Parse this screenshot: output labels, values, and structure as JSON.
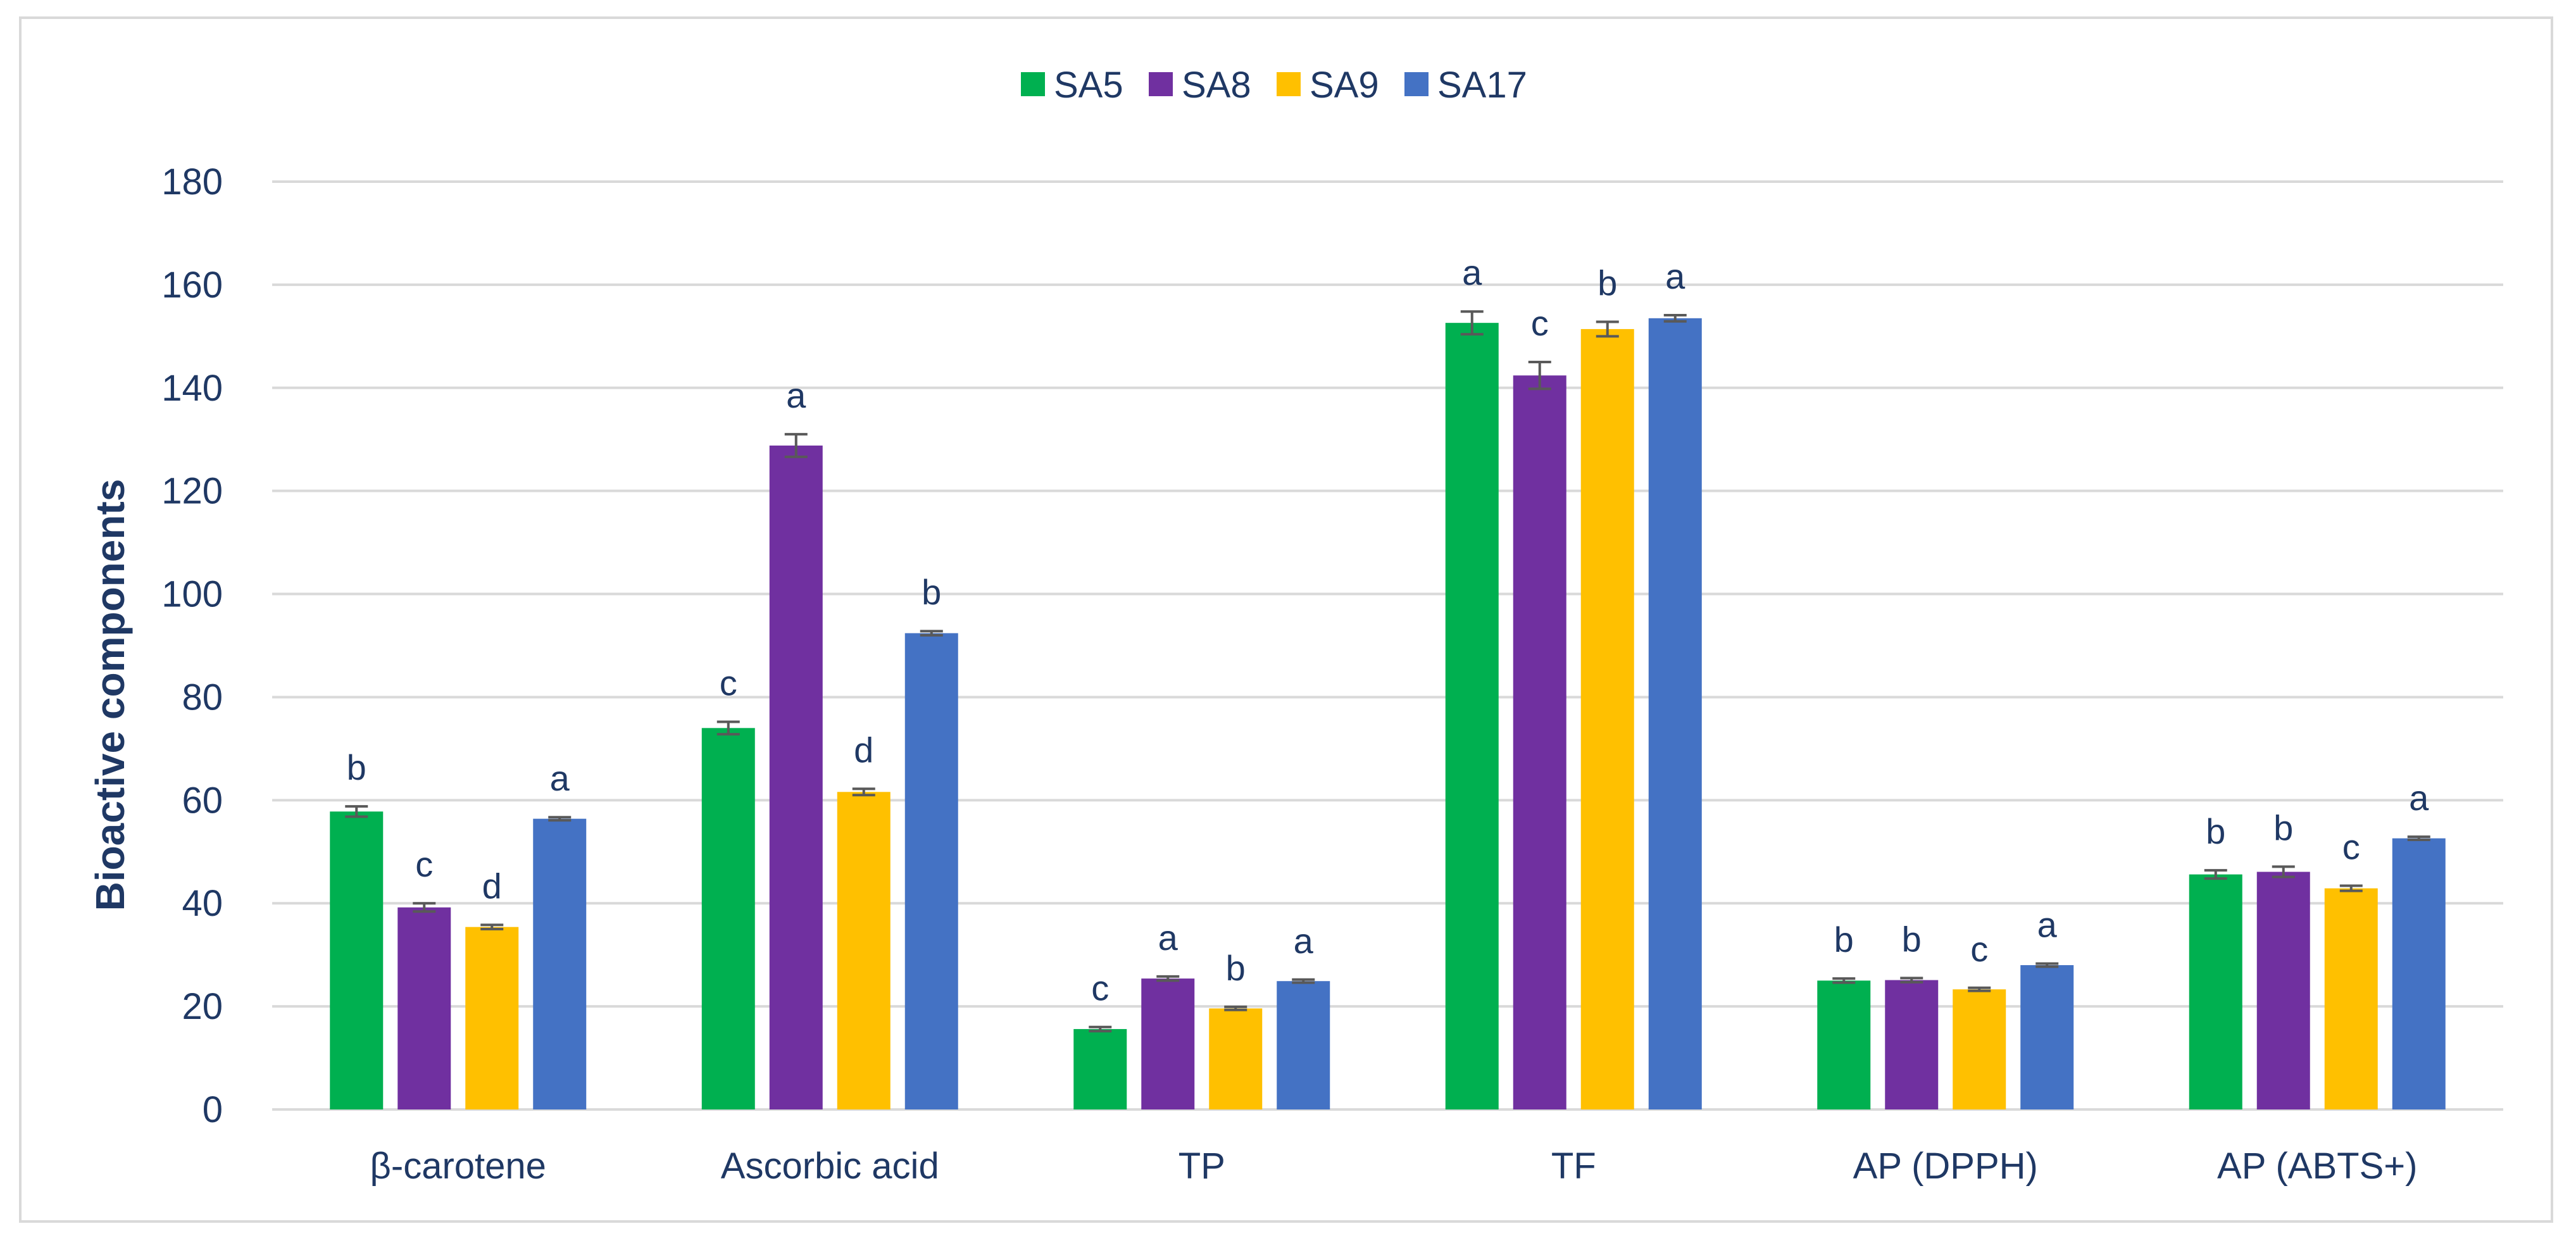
{
  "chart_data": {
    "type": "bar",
    "title": "",
    "xlabel": "",
    "ylabel": "Bioactive components",
    "ylim": [
      0,
      180
    ],
    "yticks": [
      0,
      20,
      40,
      60,
      80,
      100,
      120,
      140,
      160,
      180
    ],
    "grid": true,
    "legend_position": "top-center",
    "categories": [
      "β-carotene",
      "Ascorbic acid",
      "TP",
      "TF",
      "AP (DPPH)",
      "AP (ABTS+)"
    ],
    "series": [
      {
        "name": "SA5",
        "color": "#00b050",
        "values": [
          57.8,
          74.0,
          15.6,
          152.6,
          25.0,
          45.6
        ],
        "errors": [
          1.0,
          1.2,
          0.4,
          2.2,
          0.4,
          0.8
        ],
        "letters": [
          "b",
          "c",
          "c",
          "a",
          "b",
          "b"
        ]
      },
      {
        "name": "SA8",
        "color": "#7030a0",
        "values": [
          39.2,
          128.8,
          25.4,
          142.4,
          25.1,
          46.1
        ],
        "errors": [
          0.8,
          2.2,
          0.4,
          2.6,
          0.4,
          1.0
        ],
        "letters": [
          "c",
          "a",
          "a",
          "c",
          "b",
          "b"
        ]
      },
      {
        "name": "SA9",
        "color": "#ffc000",
        "values": [
          35.4,
          61.6,
          19.6,
          151.4,
          23.3,
          42.9
        ],
        "errors": [
          0.4,
          0.6,
          0.3,
          1.4,
          0.3,
          0.5
        ],
        "letters": [
          "d",
          "d",
          "b",
          "b",
          "c",
          "c"
        ]
      },
      {
        "name": "SA17",
        "color": "#4472c4",
        "values": [
          56.4,
          92.4,
          24.9,
          153.5,
          28.0,
          52.6
        ],
        "errors": [
          0.3,
          0.4,
          0.3,
          0.6,
          0.3,
          0.3
        ],
        "letters": [
          "a",
          "b",
          "a",
          "a",
          "a",
          "a"
        ]
      }
    ]
  }
}
